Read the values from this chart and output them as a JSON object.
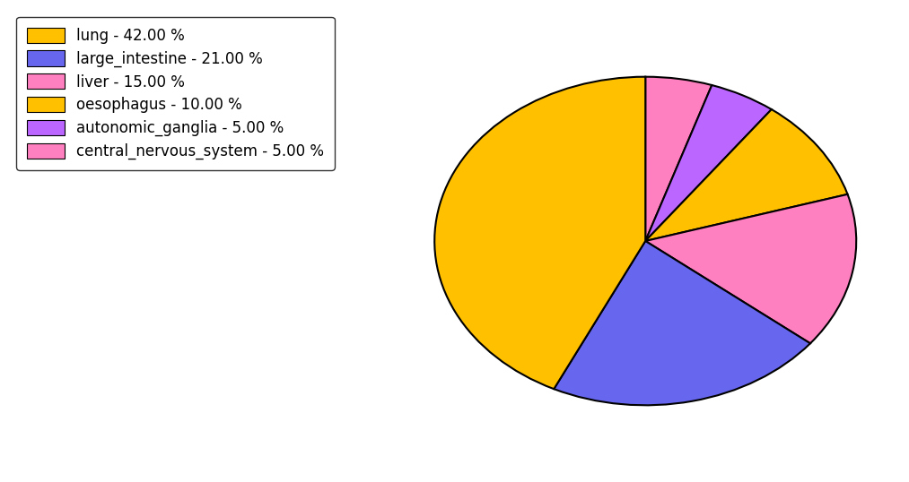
{
  "labels": [
    "lung",
    "large_intestine",
    "liver",
    "oesophagus",
    "autonomic_ganglia",
    "central_nervous_system"
  ],
  "percentages": [
    42.0,
    21.0,
    15.0,
    10.0,
    5.0,
    5.0
  ],
  "colors": [
    "#FFC000",
    "#6666EE",
    "#FF80C0",
    "#FFC000",
    "#BB66FF",
    "#FF80C0"
  ],
  "legend_labels": [
    "lung - 42.00 %",
    "large_intestine - 21.00 %",
    "liver - 15.00 %",
    "oesophagus - 10.00 %",
    "autonomic_ganglia - 5.00 %",
    "central_nervous_system - 5.00 %"
  ],
  "legend_colors": [
    "#FFC000",
    "#6666EE",
    "#FF80C0",
    "#FFC000",
    "#BB66FF",
    "#FF80C0"
  ],
  "startangle": 90,
  "figsize": [
    10.13,
    5.38
  ],
  "dpi": 100
}
